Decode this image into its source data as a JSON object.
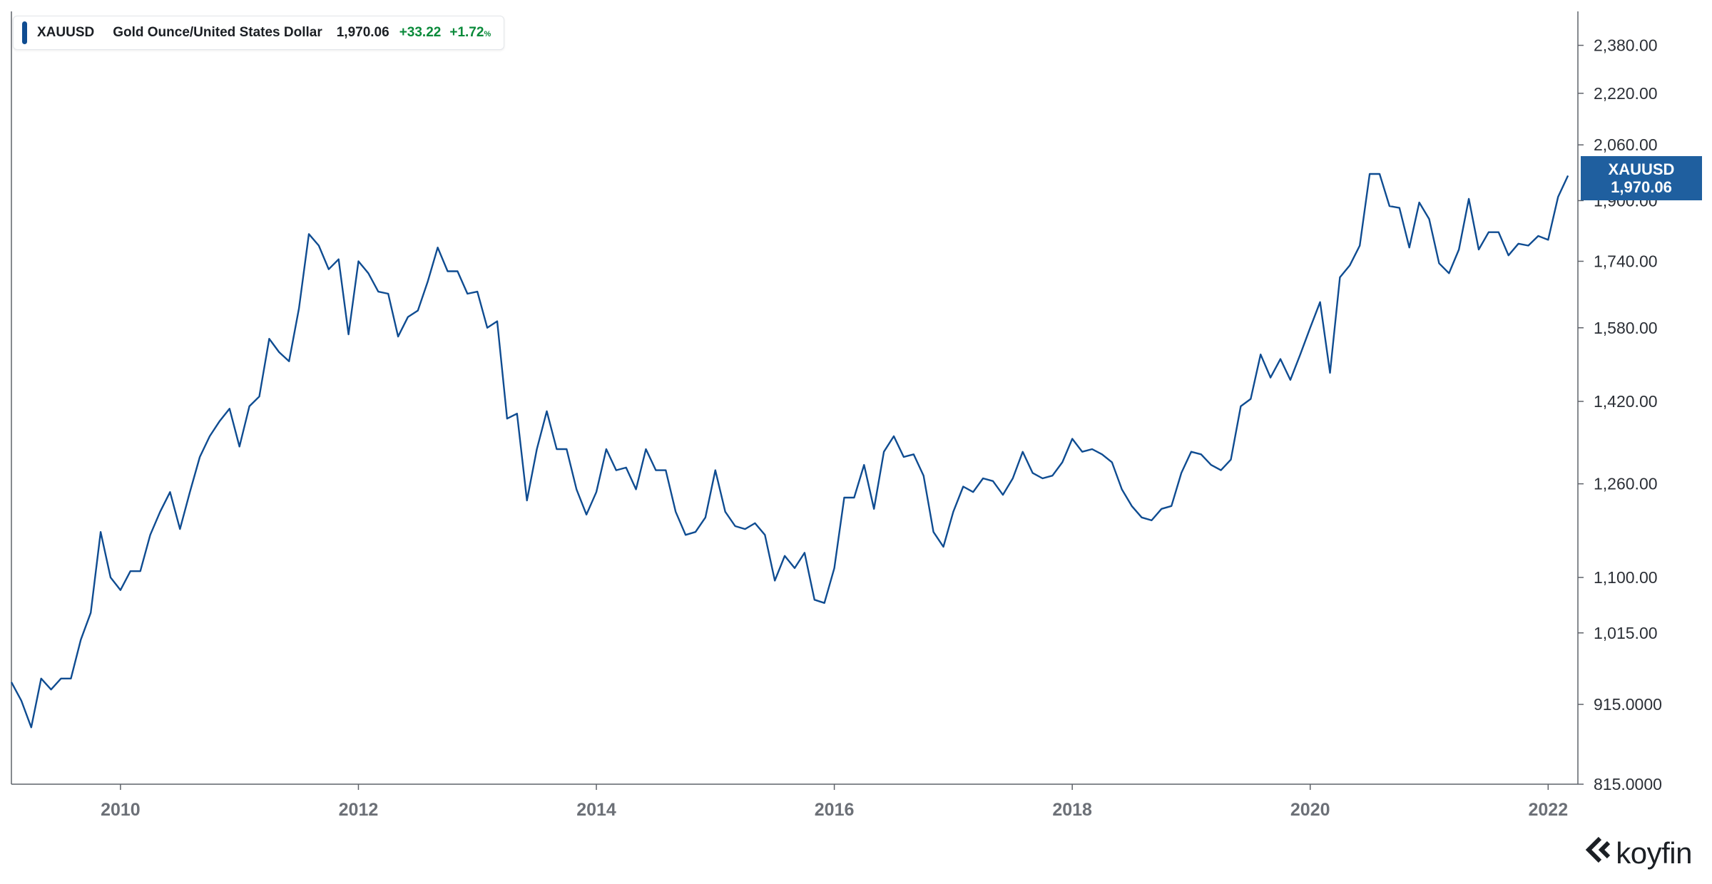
{
  "legend": {
    "ticker": "XAUUSD",
    "name": "Gold Ounce/United States Dollar",
    "price": "1,970.06",
    "change_abs": "+33.22",
    "change_pct": "+1.72",
    "change_pct_unit": "%"
  },
  "price_tag": {
    "ticker": "XAUUSD",
    "price": "1,970.06"
  },
  "brand": {
    "name": "koyfin",
    "icon": "koyfin-logo-icon"
  },
  "colors": {
    "series": "#0f4c91",
    "positive": "#0a8a3a",
    "axis": "#5f636a",
    "price_tag_bg": "#1f5f9f"
  },
  "chart_data": {
    "type": "line",
    "title": "",
    "xlabel": "",
    "ylabel": "",
    "y_scale": "log",
    "grid": false,
    "x_ticks": [
      "2010",
      "2012",
      "2014",
      "2016",
      "2018",
      "2020",
      "2022"
    ],
    "y_ticks": [
      "815.0000",
      "915.0000",
      "1,015.00",
      "1,100.00",
      "1,260.00",
      "1,420.00",
      "1,580.00",
      "1,740.00",
      "1,900.00",
      "2,060.00",
      "2,220.00",
      "2,380.00"
    ],
    "xlim": [
      "2009-02",
      "2022-04"
    ],
    "ylim": [
      815,
      2500
    ],
    "series": [
      {
        "name": "XAUUSD",
        "points": [
          [
            "2009-02",
            945
          ],
          [
            "2009-03",
            920
          ],
          [
            "2009-04",
            885
          ],
          [
            "2009-05",
            950
          ],
          [
            "2009-06",
            935
          ],
          [
            "2009-07",
            950
          ],
          [
            "2009-08",
            950
          ],
          [
            "2009-09",
            1005
          ],
          [
            "2009-10",
            1045
          ],
          [
            "2009-11",
            1175
          ],
          [
            "2009-12",
            1100
          ],
          [
            "2010-01",
            1080
          ],
          [
            "2010-02",
            1110
          ],
          [
            "2010-03",
            1110
          ],
          [
            "2010-04",
            1170
          ],
          [
            "2010-05",
            1210
          ],
          [
            "2010-06",
            1245
          ],
          [
            "2010-07",
            1180
          ],
          [
            "2010-08",
            1245
          ],
          [
            "2010-09",
            1310
          ],
          [
            "2010-10",
            1350
          ],
          [
            "2010-11",
            1380
          ],
          [
            "2010-12",
            1405
          ],
          [
            "2011-01",
            1330
          ],
          [
            "2011-02",
            1410
          ],
          [
            "2011-03",
            1430
          ],
          [
            "2011-04",
            1555
          ],
          [
            "2011-05",
            1525
          ],
          [
            "2011-06",
            1505
          ],
          [
            "2011-07",
            1625
          ],
          [
            "2011-08",
            1810
          ],
          [
            "2011-09",
            1780
          ],
          [
            "2011-10",
            1720
          ],
          [
            "2011-11",
            1745
          ],
          [
            "2011-12",
            1565
          ],
          [
            "2012-01",
            1740
          ],
          [
            "2012-02",
            1710
          ],
          [
            "2012-03",
            1665
          ],
          [
            "2012-04",
            1660
          ],
          [
            "2012-05",
            1560
          ],
          [
            "2012-06",
            1605
          ],
          [
            "2012-07",
            1620
          ],
          [
            "2012-08",
            1690
          ],
          [
            "2012-09",
            1775
          ],
          [
            "2012-10",
            1715
          ],
          [
            "2012-11",
            1715
          ],
          [
            "2012-12",
            1660
          ],
          [
            "2013-01",
            1665
          ],
          [
            "2013-02",
            1580
          ],
          [
            "2013-03",
            1595
          ],
          [
            "2013-04",
            1385
          ],
          [
            "2013-05",
            1395
          ],
          [
            "2013-06",
            1230
          ],
          [
            "2013-07",
            1325
          ],
          [
            "2013-08",
            1400
          ],
          [
            "2013-09",
            1325
          ],
          [
            "2013-10",
            1325
          ],
          [
            "2013-11",
            1250
          ],
          [
            "2013-12",
            1205
          ],
          [
            "2014-01",
            1245
          ],
          [
            "2014-02",
            1325
          ],
          [
            "2014-03",
            1285
          ],
          [
            "2014-04",
            1290
          ],
          [
            "2014-05",
            1250
          ],
          [
            "2014-06",
            1325
          ],
          [
            "2014-07",
            1285
          ],
          [
            "2014-08",
            1285
          ],
          [
            "2014-09",
            1210
          ],
          [
            "2014-10",
            1170
          ],
          [
            "2014-11",
            1175
          ],
          [
            "2014-12",
            1200
          ],
          [
            "2015-01",
            1285
          ],
          [
            "2015-02",
            1210
          ],
          [
            "2015-03",
            1185
          ],
          [
            "2015-04",
            1180
          ],
          [
            "2015-05",
            1190
          ],
          [
            "2015-06",
            1170
          ],
          [
            "2015-07",
            1095
          ],
          [
            "2015-08",
            1135
          ],
          [
            "2015-09",
            1115
          ],
          [
            "2015-10",
            1140
          ],
          [
            "2015-11",
            1065
          ],
          [
            "2015-12",
            1060
          ],
          [
            "2016-01",
            1115
          ],
          [
            "2016-02",
            1235
          ],
          [
            "2016-03",
            1235
          ],
          [
            "2016-04",
            1295
          ],
          [
            "2016-05",
            1215
          ],
          [
            "2016-06",
            1320
          ],
          [
            "2016-07",
            1350
          ],
          [
            "2016-08",
            1310
          ],
          [
            "2016-09",
            1315
          ],
          [
            "2016-10",
            1275
          ],
          [
            "2016-11",
            1175
          ],
          [
            "2016-12",
            1150
          ],
          [
            "2017-01",
            1210
          ],
          [
            "2017-02",
            1255
          ],
          [
            "2017-03",
            1245
          ],
          [
            "2017-04",
            1270
          ],
          [
            "2017-05",
            1265
          ],
          [
            "2017-06",
            1240
          ],
          [
            "2017-07",
            1270
          ],
          [
            "2017-08",
            1320
          ],
          [
            "2017-09",
            1280
          ],
          [
            "2017-10",
            1270
          ],
          [
            "2017-11",
            1275
          ],
          [
            "2017-12",
            1300
          ],
          [
            "2018-01",
            1345
          ],
          [
            "2018-02",
            1320
          ],
          [
            "2018-03",
            1325
          ],
          [
            "2018-04",
            1315
          ],
          [
            "2018-05",
            1300
          ],
          [
            "2018-06",
            1250
          ],
          [
            "2018-07",
            1220
          ],
          [
            "2018-08",
            1200
          ],
          [
            "2018-09",
            1195
          ],
          [
            "2018-10",
            1215
          ],
          [
            "2018-11",
            1220
          ],
          [
            "2018-12",
            1280
          ],
          [
            "2019-01",
            1320
          ],
          [
            "2019-02",
            1315
          ],
          [
            "2019-03",
            1295
          ],
          [
            "2019-04",
            1285
          ],
          [
            "2019-05",
            1305
          ],
          [
            "2019-06",
            1410
          ],
          [
            "2019-07",
            1425
          ],
          [
            "2019-08",
            1520
          ],
          [
            "2019-09",
            1470
          ],
          [
            "2019-10",
            1510
          ],
          [
            "2019-11",
            1465
          ],
          [
            "2019-12",
            1520
          ],
          [
            "2020-01",
            1580
          ],
          [
            "2020-02",
            1640
          ],
          [
            "2020-03",
            1480
          ],
          [
            "2020-04",
            1700
          ],
          [
            "2020-05",
            1730
          ],
          [
            "2020-06",
            1780
          ],
          [
            "2020-07",
            1975
          ],
          [
            "2020-08",
            1975
          ],
          [
            "2020-09",
            1885
          ],
          [
            "2020-10",
            1880
          ],
          [
            "2020-11",
            1775
          ],
          [
            "2020-12",
            1895
          ],
          [
            "2021-01",
            1850
          ],
          [
            "2021-02",
            1735
          ],
          [
            "2021-03",
            1710
          ],
          [
            "2021-04",
            1770
          ],
          [
            "2021-05",
            1905
          ],
          [
            "2021-06",
            1770
          ],
          [
            "2021-07",
            1815
          ],
          [
            "2021-08",
            1815
          ],
          [
            "2021-09",
            1755
          ],
          [
            "2021-10",
            1785
          ],
          [
            "2021-11",
            1780
          ],
          [
            "2021-12",
            1805
          ],
          [
            "2022-01",
            1795
          ],
          [
            "2022-02",
            1910
          ],
          [
            "2022-03",
            1970.06
          ]
        ]
      }
    ]
  }
}
